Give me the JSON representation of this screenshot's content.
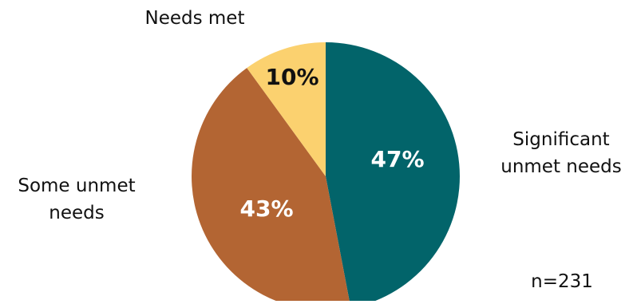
{
  "chart_data": {
    "type": "pie",
    "slices": [
      {
        "label_lines": [
          "Significant",
          "unmet needs"
        ],
        "value": 47,
        "value_label": "47%",
        "color": "#02646a",
        "text_color": "#ffffff"
      },
      {
        "label_lines": [
          "Some unmet",
          "needs"
        ],
        "value": 43,
        "value_label": "43%",
        "color": "#b36533",
        "text_color": "#ffffff"
      },
      {
        "label_lines": [
          "Needs met"
        ],
        "value": 10,
        "value_label": "10%",
        "color": "#fbd16f",
        "text_color": "#111111"
      }
    ],
    "start_angle_deg": 0,
    "direction": "clockwise",
    "note": "n=231"
  }
}
